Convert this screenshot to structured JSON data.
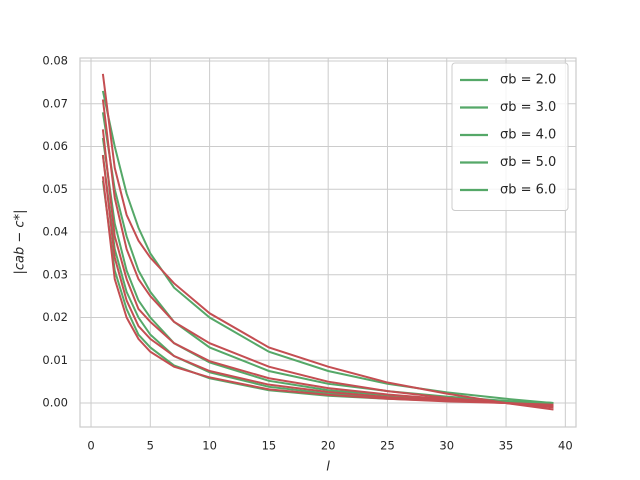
{
  "chart_data": {
    "type": "line",
    "xlabel": "l",
    "ylabel": "|cab − c*|",
    "x": [
      1,
      2,
      3,
      4,
      5,
      7,
      10,
      15,
      20,
      25,
      30,
      35,
      39
    ],
    "series": [
      {
        "name": "σb = 2.0",
        "color": "#55a868",
        "values": [
          0.073,
          0.06,
          0.049,
          0.041,
          0.035,
          0.027,
          0.02,
          0.012,
          0.0075,
          0.0045,
          0.0025,
          0.001,
          0.0
        ]
      },
      {
        "name": "σb = 3.0",
        "color": "#55a868",
        "values": [
          0.068,
          0.05,
          0.039,
          0.031,
          0.026,
          0.019,
          0.013,
          0.0075,
          0.0045,
          0.0028,
          0.0015,
          0.0005,
          0.0
        ]
      },
      {
        "name": "σb = 4.0",
        "color": "#55a868",
        "values": [
          0.062,
          0.042,
          0.031,
          0.024,
          0.02,
          0.014,
          0.0095,
          0.0052,
          0.003,
          0.0018,
          0.001,
          0.0004,
          0.0
        ]
      },
      {
        "name": "σb = 5.0",
        "color": "#55a868",
        "values": [
          0.058,
          0.036,
          0.026,
          0.02,
          0.016,
          0.011,
          0.0072,
          0.0038,
          0.0022,
          0.0013,
          0.0007,
          0.0003,
          0.0
        ]
      },
      {
        "name": "σb = 6.0",
        "color": "#55a868",
        "values": [
          0.052,
          0.031,
          0.022,
          0.016,
          0.013,
          0.0088,
          0.0058,
          0.003,
          0.0017,
          0.001,
          0.0005,
          0.0002,
          0.0
        ]
      },
      {
        "color": "#c44e52",
        "values": [
          0.077,
          0.055,
          0.044,
          0.038,
          0.034,
          0.028,
          0.021,
          0.013,
          0.0085,
          0.0048,
          0.0022,
          0.0,
          -0.0015
        ]
      },
      {
        "color": "#c44e52",
        "values": [
          0.071,
          0.048,
          0.036,
          0.029,
          0.025,
          0.019,
          0.014,
          0.0085,
          0.005,
          0.0028,
          0.0012,
          0.0,
          -0.001
        ]
      },
      {
        "color": "#c44e52",
        "values": [
          0.064,
          0.039,
          0.029,
          0.022,
          0.019,
          0.014,
          0.0098,
          0.0058,
          0.0035,
          0.002,
          0.0009,
          0.0,
          -0.0008
        ]
      },
      {
        "color": "#c44e52",
        "values": [
          0.058,
          0.034,
          0.024,
          0.018,
          0.015,
          0.011,
          0.0075,
          0.0043,
          0.0026,
          0.0014,
          0.0006,
          0.0,
          -0.0006
        ]
      },
      {
        "color": "#c44e52",
        "values": [
          0.053,
          0.029,
          0.02,
          0.015,
          0.012,
          0.0085,
          0.006,
          0.0032,
          0.0019,
          0.001,
          0.0004,
          0.0,
          -0.0004
        ]
      }
    ],
    "xlim": [
      -0.93,
      40.9
    ],
    "xticks": [
      0,
      5,
      10,
      15,
      20,
      25,
      30,
      35,
      40
    ],
    "ylim": [
      -0.0056,
      0.0807
    ],
    "yticks": [
      {
        "value": 0,
        "label": "0.00"
      },
      {
        "value": 0.01,
        "label": "0.01"
      },
      {
        "value": 0.02,
        "label": "0.02"
      },
      {
        "value": 0.03,
        "label": "0.03"
      },
      {
        "value": 0.04,
        "label": "0.04"
      },
      {
        "value": 0.05,
        "label": "0.05"
      },
      {
        "value": 0.06,
        "label": "0.06"
      },
      {
        "value": 0.07,
        "label": "0.07"
      },
      {
        "value": 0.08,
        "label": "0.08"
      }
    ],
    "grid": true,
    "legend": "upper right"
  }
}
